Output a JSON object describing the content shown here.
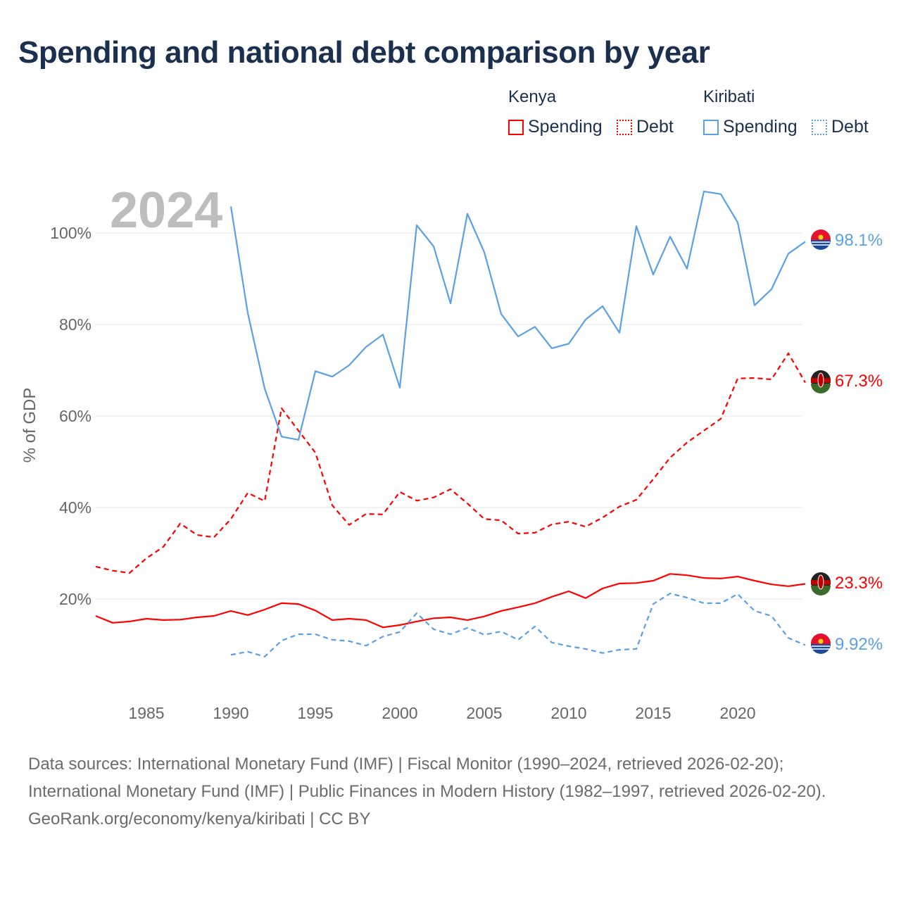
{
  "title": "Spending and national debt comparison by year",
  "legend": {
    "groups": [
      {
        "country": "Kenya",
        "items": [
          "Spending",
          "Debt"
        ]
      },
      {
        "country": "Kiribati",
        "items": [
          "Spending",
          "Debt"
        ]
      }
    ]
  },
  "year_watermark": "2024",
  "sources": {
    "line1": "Data sources: International Monetary Fund (IMF) | Fiscal Monitor (1990–2024, retrieved 2026-02-20); International Monetary Fund (IMF) | Public Finances in Modern History (1982–1997, retrieved 2026-02-20).",
    "line2": "GeoRank.org/economy/kenya/kiribati | CC BY"
  },
  "colors": {
    "kenya": "#ff0000",
    "kiribati": "#5aa0e6",
    "title": "#1b2f4e"
  },
  "chart_data": {
    "type": "line",
    "ylabel": "% of GDP",
    "xlabel": "",
    "xlim": [
      1982,
      2024
    ],
    "ylim": [
      0,
      115
    ],
    "x_ticks": [
      1985,
      1990,
      1995,
      2000,
      2005,
      2010,
      2015,
      2020
    ],
    "x_tick_labels": [
      "1985",
      "1990",
      "1995",
      "2000",
      "2005",
      "2010",
      "2015",
      "2020"
    ],
    "y_ticks": [
      20,
      40,
      60,
      80,
      100
    ],
    "y_tick_labels": [
      "20%",
      "40%",
      "60%",
      "80%",
      "100%"
    ],
    "grid": true,
    "legend_position": "top-right",
    "series": [
      {
        "name": "Kenya Spending",
        "color": "#ff0000",
        "dash": false,
        "start": 1982,
        "end_label": "23.3%",
        "values": [
          16.3,
          14.8,
          15.1,
          15.7,
          15.4,
          15.5,
          16.0,
          16.3,
          17.4,
          16.5,
          17.7,
          19.1,
          18.9,
          17.5,
          15.4,
          15.7,
          15.4,
          13.8,
          14.3,
          15.1,
          15.8,
          16.0,
          15.4,
          16.2,
          17.4,
          18.2,
          19.1,
          20.5,
          21.7,
          20.2,
          22.3,
          23.4,
          23.5,
          24.0,
          25.5,
          25.2,
          24.6,
          24.5,
          24.9,
          24.0,
          23.2,
          22.8,
          23.3
        ]
      },
      {
        "name": "Kenya Debt",
        "color": "#ff0000",
        "dash": true,
        "start": 1982,
        "end_label": "67.3%",
        "values": [
          27.1,
          26.2,
          25.7,
          28.9,
          31.4,
          36.5,
          34.0,
          33.5,
          37.5,
          43.2,
          41.4,
          61.7,
          56.8,
          52.0,
          40.5,
          36.2,
          38.6,
          38.5,
          43.4,
          41.5,
          42.2,
          44.0,
          40.9,
          37.5,
          37.2,
          34.3,
          34.5,
          36.3,
          36.9,
          35.8,
          37.8,
          40.2,
          41.7,
          46.2,
          50.9,
          54.2,
          56.8,
          59.4,
          68.2,
          68.3,
          68.0,
          73.7,
          67.3
        ]
      },
      {
        "name": "Kiribati Spending",
        "color": "#5aa0e6",
        "dash": false,
        "start": 1990,
        "end_label": "98.1%",
        "values": [
          105.8,
          82.5,
          66.0,
          55.5,
          54.8,
          69.8,
          68.6,
          71.1,
          75.1,
          77.8,
          66.2,
          101.7,
          97.1,
          84.6,
          104.2,
          95.8,
          82.3,
          77.4,
          79.5,
          74.8,
          75.8,
          81.1,
          84.0,
          78.2,
          101.5,
          90.9,
          99.2,
          92.2,
          109.1,
          108.5,
          102.3,
          84.2,
          87.7,
          95.5,
          98.1
        ]
      },
      {
        "name": "Kiribati Debt",
        "color": "#5aa0e6",
        "dash": true,
        "start": 1990,
        "end_label": "9.92%",
        "values": [
          7.8,
          8.5,
          7.4,
          10.9,
          12.3,
          12.3,
          11.1,
          10.8,
          9.8,
          11.8,
          12.8,
          16.9,
          13.4,
          12.3,
          13.7,
          12.2,
          12.9,
          11.1,
          14.0,
          10.5,
          9.7,
          9.1,
          8.2,
          8.9,
          9.1,
          18.9,
          21.2,
          20.3,
          19.1,
          19.1,
          21.1,
          17.4,
          16.3,
          11.5,
          9.92
        ]
      }
    ]
  }
}
